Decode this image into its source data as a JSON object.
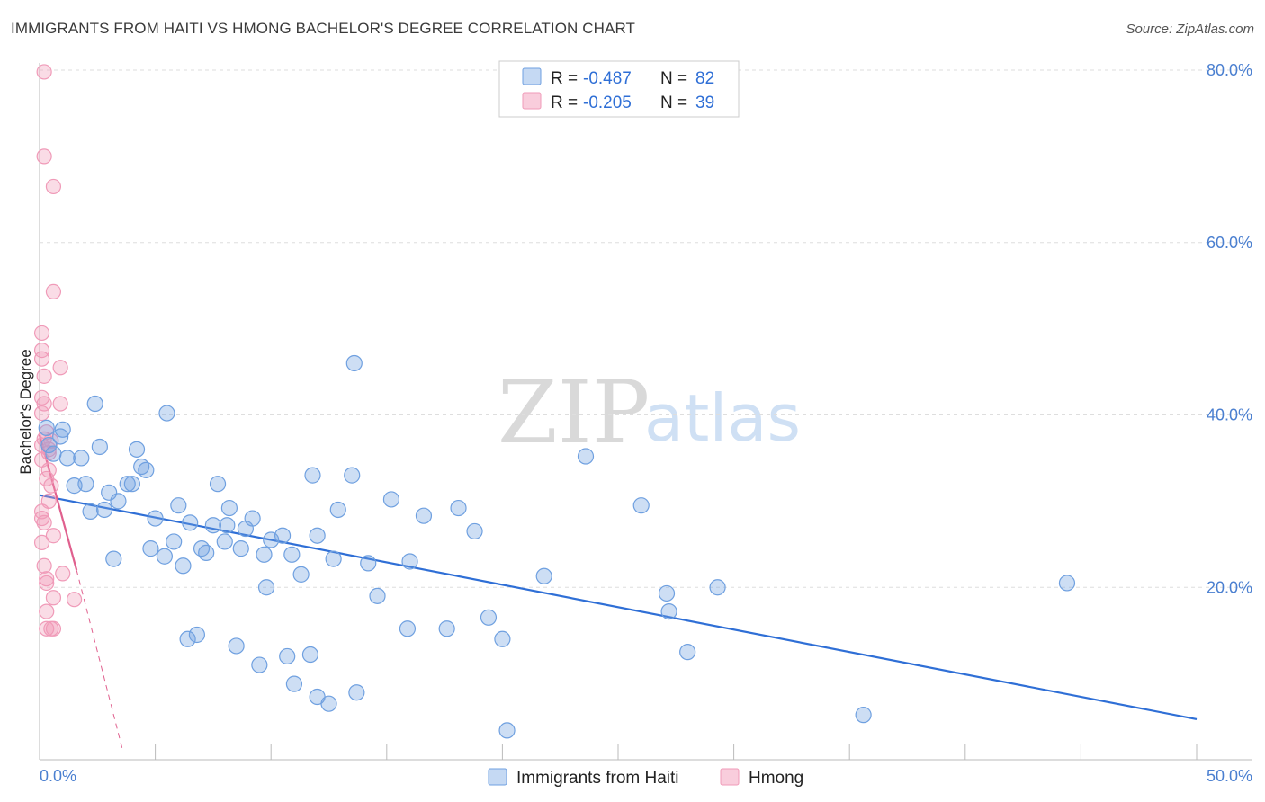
{
  "title": "IMMIGRANTS FROM HAITI VS HMONG BACHELOR'S DEGREE CORRELATION CHART",
  "source": "Source: ZipAtlas.com",
  "watermark": {
    "part1": "ZIP",
    "part2": "atlas"
  },
  "legend": {
    "r_label": "R =",
    "n_label": "N =",
    "rows": [
      {
        "r": "-0.487",
        "n": "82"
      },
      {
        "r": "-0.205",
        "n": "39"
      }
    ]
  },
  "bottom_legend": [
    "Immigrants from Haiti",
    "Hmong"
  ],
  "chart_data": {
    "type": "scatter",
    "ylabel": "Bachelor's Degree",
    "xlim": [
      0,
      50
    ],
    "ylim": [
      0,
      80
    ],
    "x_tick_labels": [
      "0.0%",
      "50.0%"
    ],
    "y_ticks": [
      20,
      40,
      60,
      80
    ],
    "y_tick_labels": [
      "20.0%",
      "40.0%",
      "60.0%",
      "80.0%"
    ],
    "colors": {
      "haiti": "#6fa0e0",
      "haiti_line": "#2f6fd6",
      "hmong": "#f09ab8",
      "hmong_line": "#e0608e"
    },
    "series": [
      {
        "name": "Immigrants from Haiti",
        "trend": {
          "x": [
            0,
            50
          ],
          "y": [
            30.7,
            4.7
          ]
        },
        "points": [
          [
            0.3,
            38.5
          ],
          [
            0.4,
            36.5
          ],
          [
            0.6,
            35.5
          ],
          [
            0.9,
            37.5
          ],
          [
            1.0,
            38.3
          ],
          [
            1.2,
            35.0
          ],
          [
            1.5,
            31.8
          ],
          [
            1.8,
            35.0
          ],
          [
            2.0,
            32.0
          ],
          [
            2.2,
            28.8
          ],
          [
            2.4,
            41.3
          ],
          [
            2.6,
            36.3
          ],
          [
            2.8,
            29.0
          ],
          [
            3.0,
            31.0
          ],
          [
            3.2,
            23.3
          ],
          [
            3.4,
            30.0
          ],
          [
            3.8,
            32.0
          ],
          [
            4.0,
            32.0
          ],
          [
            4.2,
            36.0
          ],
          [
            4.4,
            34.0
          ],
          [
            4.6,
            33.6
          ],
          [
            4.8,
            24.5
          ],
          [
            5.0,
            28.0
          ],
          [
            5.4,
            23.6
          ],
          [
            5.5,
            40.2
          ],
          [
            5.8,
            25.3
          ],
          [
            6.0,
            29.5
          ],
          [
            6.2,
            22.5
          ],
          [
            6.4,
            14.0
          ],
          [
            6.5,
            27.5
          ],
          [
            6.8,
            14.5
          ],
          [
            7.0,
            24.5
          ],
          [
            7.2,
            24.0
          ],
          [
            7.5,
            27.2
          ],
          [
            7.7,
            32.0
          ],
          [
            8.0,
            25.3
          ],
          [
            8.1,
            27.2
          ],
          [
            8.2,
            29.2
          ],
          [
            8.5,
            13.2
          ],
          [
            8.7,
            24.5
          ],
          [
            8.9,
            26.8
          ],
          [
            9.2,
            28.0
          ],
          [
            9.5,
            11.0
          ],
          [
            9.7,
            23.8
          ],
          [
            9.8,
            20.0
          ],
          [
            10.0,
            25.5
          ],
          [
            10.5,
            26.0
          ],
          [
            10.7,
            12.0
          ],
          [
            10.9,
            23.8
          ],
          [
            11.0,
            8.8
          ],
          [
            11.3,
            21.5
          ],
          [
            11.7,
            12.2
          ],
          [
            11.8,
            33.0
          ],
          [
            12.0,
            26.0
          ],
          [
            12.0,
            7.3
          ],
          [
            12.5,
            6.5
          ],
          [
            12.7,
            23.3
          ],
          [
            12.9,
            29.0
          ],
          [
            13.5,
            33.0
          ],
          [
            13.7,
            7.8
          ],
          [
            13.6,
            46.0
          ],
          [
            14.2,
            22.8
          ],
          [
            14.6,
            19.0
          ],
          [
            15.2,
            30.2
          ],
          [
            15.9,
            15.2
          ],
          [
            16.0,
            23.0
          ],
          [
            16.6,
            28.3
          ],
          [
            17.6,
            15.2
          ],
          [
            18.1,
            29.2
          ],
          [
            18.8,
            26.5
          ],
          [
            19.4,
            16.5
          ],
          [
            20.0,
            14.0
          ],
          [
            20.2,
            3.4
          ],
          [
            21.8,
            21.3
          ],
          [
            23.6,
            35.2
          ],
          [
            26.0,
            29.5
          ],
          [
            27.1,
            19.3
          ],
          [
            27.2,
            17.2
          ],
          [
            28.0,
            12.5
          ],
          [
            29.3,
            20.0
          ],
          [
            35.6,
            5.2
          ],
          [
            44.4,
            20.5
          ]
        ]
      },
      {
        "name": "Hmong",
        "trend": {
          "x": [
            0,
            1.6
          ],
          "y": [
            37.7,
            22.0
          ]
        },
        "trend_ext": {
          "x": [
            1.6,
            3.6
          ],
          "y": [
            22.0,
            1.0
          ]
        },
        "points": [
          [
            0.2,
            79.8
          ],
          [
            0.2,
            70.0
          ],
          [
            0.6,
            66.5
          ],
          [
            0.6,
            54.3
          ],
          [
            0.1,
            49.5
          ],
          [
            0.1,
            47.5
          ],
          [
            0.1,
            46.5
          ],
          [
            0.9,
            45.5
          ],
          [
            0.2,
            44.5
          ],
          [
            0.1,
            42.0
          ],
          [
            0.2,
            41.3
          ],
          [
            0.9,
            41.3
          ],
          [
            0.1,
            40.2
          ],
          [
            0.3,
            38.0
          ],
          [
            0.2,
            37.2
          ],
          [
            0.1,
            36.5
          ],
          [
            0.4,
            35.6
          ],
          [
            0.1,
            34.8
          ],
          [
            0.4,
            33.6
          ],
          [
            0.3,
            32.6
          ],
          [
            0.5,
            31.8
          ],
          [
            0.4,
            30.0
          ],
          [
            0.1,
            28.8
          ],
          [
            0.1,
            28.0
          ],
          [
            0.6,
            26.0
          ],
          [
            0.1,
            25.2
          ],
          [
            0.2,
            22.5
          ],
          [
            1.0,
            21.6
          ],
          [
            0.3,
            21.0
          ],
          [
            0.3,
            20.5
          ],
          [
            0.6,
            18.8
          ],
          [
            1.5,
            18.6
          ],
          [
            0.3,
            17.2
          ],
          [
            0.3,
            15.2
          ],
          [
            0.5,
            15.2
          ],
          [
            0.6,
            15.2
          ],
          [
            0.4,
            36.0
          ],
          [
            0.2,
            27.5
          ],
          [
            0.5,
            37.0
          ]
        ]
      }
    ]
  }
}
